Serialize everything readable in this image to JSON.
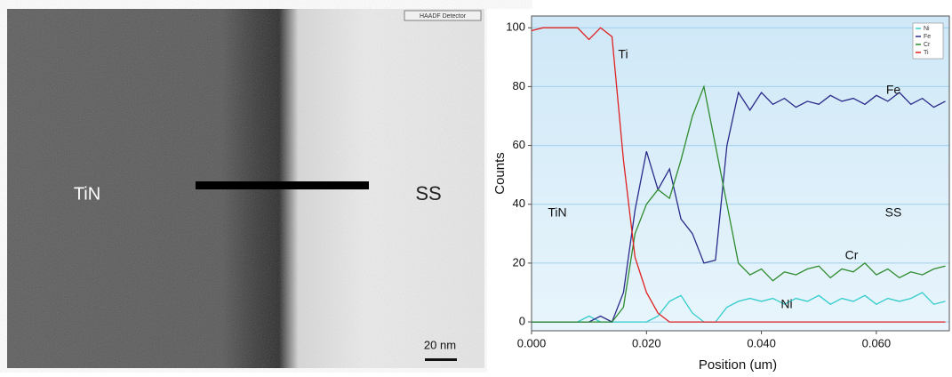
{
  "micrograph": {
    "detector": "HAADF Detector",
    "scale_bar": "20 nm",
    "labels": [
      "TiN",
      "SS"
    ]
  },
  "chart_data": {
    "type": "line",
    "xlabel": "Position (um)",
    "ylabel": "Counts",
    "x": [
      0,
      0.002,
      0.004,
      0.006,
      0.008,
      0.01,
      0.012,
      0.014,
      0.016,
      0.018,
      0.02,
      0.022,
      0.024,
      0.026,
      0.028,
      0.03,
      0.032,
      0.034,
      0.036,
      0.038,
      0.04,
      0.042,
      0.044,
      0.046,
      0.048,
      0.05,
      0.052,
      0.054,
      0.056,
      0.058,
      0.06,
      0.062,
      0.064,
      0.066,
      0.068,
      0.07,
      0.072
    ],
    "series": [
      {
        "name": "Ni",
        "color": "#33cccc",
        "values": [
          0,
          0,
          0,
          0,
          0,
          2,
          0,
          0,
          0,
          0,
          0,
          2,
          7,
          9,
          3,
          0,
          0,
          5,
          7,
          8,
          7,
          8,
          6,
          8,
          7,
          9,
          6,
          8,
          7,
          9,
          6,
          8,
          7,
          8,
          10,
          6,
          7
        ]
      },
      {
        "name": "Fe",
        "color": "#2a2a8a",
        "values": [
          0,
          0,
          0,
          0,
          0,
          0,
          2,
          0,
          10,
          38,
          58,
          45,
          52,
          35,
          30,
          20,
          21,
          60,
          78,
          72,
          78,
          74,
          76,
          73,
          75,
          74,
          77,
          75,
          76,
          74,
          77,
          75,
          78,
          74,
          76,
          73,
          75
        ]
      },
      {
        "name": "Cr",
        "color": "#2e8b2e",
        "values": [
          0,
          0,
          0,
          0,
          0,
          0,
          0,
          0,
          5,
          30,
          40,
          45,
          42,
          55,
          70,
          80,
          60,
          40,
          20,
          16,
          18,
          14,
          17,
          16,
          18,
          19,
          15,
          18,
          17,
          20,
          16,
          18,
          15,
          17,
          16,
          18,
          19
        ]
      },
      {
        "name": "Ti",
        "color": "#e02020",
        "values": [
          99,
          100,
          100,
          100,
          100,
          96,
          100,
          97,
          55,
          22,
          10,
          3,
          0,
          0,
          0,
          0,
          0,
          0,
          0,
          0,
          0,
          0,
          0,
          0,
          0,
          0,
          0,
          0,
          0,
          0,
          0,
          0,
          0,
          0,
          0,
          0,
          0
        ]
      }
    ],
    "xlim": [
      0,
      0.0727
    ],
    "ylim": [
      -3,
      104
    ],
    "xticks": [
      {
        "value": 0,
        "label": "0.000"
      },
      {
        "value": 0.02,
        "label": "0.020"
      },
      {
        "value": 0.04,
        "label": "0.040"
      },
      {
        "value": 0.06,
        "label": "0.060"
      }
    ],
    "yticks": [
      0,
      20,
      40,
      60,
      80,
      100
    ],
    "grid": true,
    "legend": "upper right",
    "annotations": [
      "Ti",
      "Fe",
      "Cr",
      "Ni",
      "TiN",
      "SS"
    ]
  }
}
